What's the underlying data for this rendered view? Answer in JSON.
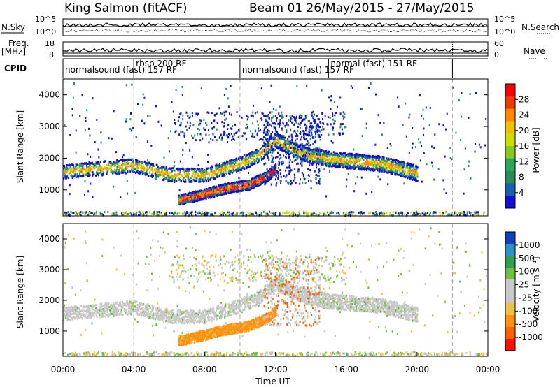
{
  "header": {
    "station": "King Salmon (fitACF)",
    "beam_range": "Beam 01  26/May/2015 - 27/May/2015"
  },
  "strip_labels": {
    "nsky": "N.Sky",
    "freq_a": "Freq.",
    "freq_b": "[MHz]",
    "cpid": "CPID",
    "nsearch": "N.Search",
    "nave": "Nave"
  },
  "strip_ticks": {
    "nsky_left_top": "10^5",
    "nsky_left_bottom": "10^0",
    "nsky_right_top": "10^5",
    "nsky_right_bottom": "10^0",
    "freq_left_top": "18",
    "freq_left_bottom": "8",
    "nave_right_top": "60",
    "nave_right_bottom": "0"
  },
  "cpid_segments": [
    {
      "label": "normalsound (fast) 157 RF",
      "start": 0,
      "end": 4
    },
    {
      "label": "rbsp 200 RF",
      "start": 4,
      "end": 10
    },
    {
      "label": "normalsound (fast) 157 RF",
      "start": 10,
      "end": 15
    },
    {
      "label": "normal (fast) 151 RF",
      "start": 15,
      "end": 22
    }
  ],
  "x_axis": {
    "title": "Time UT",
    "ticks": [
      "00:00",
      "04:00",
      "08:00",
      "12:00",
      "16:00",
      "20:00",
      "00:00"
    ]
  },
  "panels": {
    "power": {
      "ylabel": "Slant Range [km]",
      "cbar_label": "Power [dB]",
      "cbar_ticks": [
        "28",
        "24",
        "20",
        "16",
        "12",
        "8",
        "4"
      ],
      "cbar_colors": [
        "#ff0000",
        "#ee3a00",
        "#ff8800",
        "#f0c000",
        "#ccdd00",
        "#88c820",
        "#2aa860",
        "#2a8a58",
        "#1a60b0",
        "#1010d8"
      ]
    },
    "velocity": {
      "ylabel": "Slant Range [km]",
      "cbar_label": "Velocity [m s⁻¹]",
      "cbar_ticks": [
        "1000",
        "500",
        "100",
        "25",
        "-25",
        "-100",
        "-500",
        "-1000"
      ],
      "cbar_colors": [
        "#1040c0",
        "#3090c8",
        "#30a050",
        "#70c040",
        "#c8c8c8",
        "#c8c8c8",
        "#f0c040",
        "#ff9010",
        "#ff6000",
        "#ff1000"
      ]
    }
  },
  "chart_data": {
    "type": "heatmap",
    "x_range_hours": [
      0,
      24
    ],
    "y_range_km": [
      180,
      4500
    ],
    "y_ticks": [
      1000,
      2000,
      3000,
      4000
    ],
    "x_tick_hours": [
      0,
      4,
      8,
      12,
      16,
      20,
      24
    ],
    "dashed_line_hours": [
      4,
      10,
      22
    ],
    "bands": [
      {
        "name": "upper-arc",
        "t": [
          0,
          2,
          4,
          6,
          8,
          10,
          11,
          12
        ],
        "r": [
          1600,
          1700,
          1800,
          1500,
          1500,
          1850,
          2100,
          2600
        ],
        "w": 220
      },
      {
        "name": "lower-arc",
        "t": [
          6.5,
          8,
          9,
          10.5,
          11.5,
          12
        ],
        "r": [
          700,
          900,
          1050,
          1200,
          1450,
          1700
        ],
        "w": 160
      },
      {
        "name": "late-arc",
        "t": [
          12,
          13,
          14,
          15,
          16,
          17,
          18,
          19,
          20
        ],
        "r": [
          2600,
          2300,
          2100,
          2000,
          1950,
          1900,
          1850,
          1700,
          1550
        ],
        "w": 240
      }
    ]
  }
}
